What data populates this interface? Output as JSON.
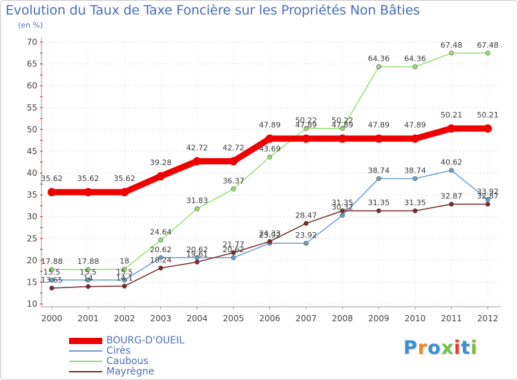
{
  "title": "Evolution du Taux de Taxe Foncière sur les Propriétés Non Bâties",
  "unit": "(en %)",
  "chart_data": {
    "type": "line",
    "title": "Evolution du Taux de Taxe Foncière sur les Propriétés Non Bâties",
    "ylabel": "(en %)",
    "xlabel": "",
    "ylim": [
      10,
      70
    ],
    "yticks": [
      "10",
      "15",
      "20",
      "25",
      "30",
      "35",
      "40",
      "45",
      "50",
      "55",
      "60",
      "65",
      "70"
    ],
    "categories": [
      "2000",
      "2001",
      "2002",
      "2003",
      "2004",
      "2005",
      "2006",
      "2007",
      "2008",
      "2009",
      "2010",
      "2011",
      "2012"
    ],
    "series": [
      {
        "name": "BOURG-D'OUEIL",
        "color": "#ee0000",
        "values": [
          35.62,
          35.62,
          35.62,
          39.28,
          42.72,
          42.72,
          47.89,
          47.89,
          47.89,
          47.89,
          47.89,
          50.21,
          50.21
        ],
        "labels": [
          "35.62",
          "35.62",
          "35.62",
          "39.28",
          "42.72",
          "42.72",
          "47.89",
          "47.89",
          "47.89",
          "47.89",
          "47.89",
          "50.21",
          "50.21"
        ]
      },
      {
        "name": "Cirès",
        "color": "#6a9ed0",
        "values": [
          15.5,
          15.5,
          15.5,
          20.62,
          20.62,
          20.62,
          23.92,
          23.92,
          30.32,
          38.74,
          38.74,
          40.62,
          33.92
        ],
        "labels": [
          "15.5",
          "15.5",
          "15.5",
          "20.62",
          "20.62",
          "20.62",
          "23.92",
          "23.92",
          "30.32",
          "38.74",
          "38.74",
          "40.62",
          "33.92"
        ]
      },
      {
        "name": "Caubous",
        "color": "#99dd77",
        "values": [
          17.88,
          17.88,
          18,
          24.64,
          31.83,
          36.37,
          43.69,
          50.22,
          50.22,
          64.36,
          64.36,
          67.48,
          67.48
        ],
        "labels": [
          "17.88",
          "17.88",
          "18",
          "24.64",
          "31.83",
          "36.37",
          "43.69",
          "50.22",
          "50.22",
          "64.36",
          "64.36",
          "67.48",
          "67.48"
        ]
      },
      {
        "name": "Mayrègne",
        "color": "#7a2a2a",
        "values": [
          13.65,
          14,
          14.1,
          18.24,
          19.61,
          21.77,
          24.33,
          28.47,
          31.35,
          31.35,
          31.35,
          32.87,
          32.87
        ],
        "labels": [
          "13.65",
          "14",
          "14.1",
          "18.24",
          "19.61",
          "21.77",
          "24.33",
          "28.47",
          "31.35",
          "31.35",
          "31.35",
          "32.87",
          "32.87"
        ]
      }
    ]
  },
  "logo": {
    "text": "Proxiti",
    "colors": [
      "#3a8fd0",
      "#f08a1a",
      "#3a8fd0",
      "#7ac043",
      "#e83a2a",
      "#3a8fd0",
      "#7ac043"
    ]
  }
}
